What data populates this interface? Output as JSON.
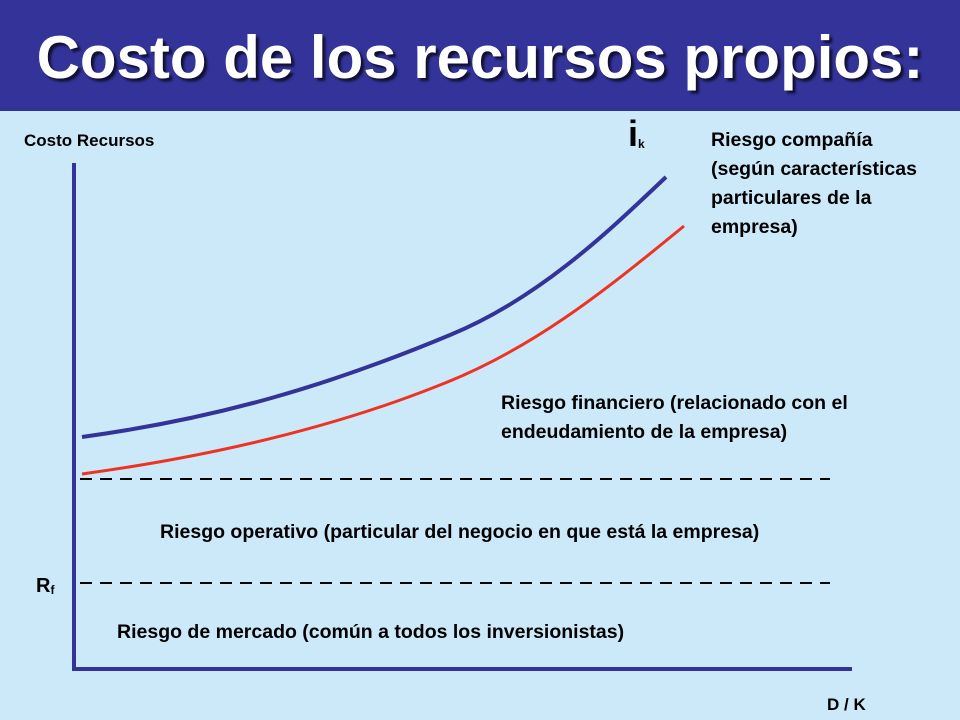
{
  "title": "Costo de los recursos propios:",
  "y_axis_label": "Costo Recursos",
  "x_axis_label": "D / K",
  "curve_label": {
    "base": "i",
    "sub": "k"
  },
  "rf_label": {
    "base": "R",
    "sub": "f"
  },
  "annotations": {
    "riesgo_compania": "Riesgo compañía (según características particulares de la empresa)",
    "riesgo_financiero": "Riesgo financiero (relacionado con el endeudamiento de la empresa)",
    "riesgo_operativo": "Riesgo operativo (particular del negocio en que está la empresa)",
    "riesgo_mercado": "Riesgo de mercado (común a todos los inversionistas)"
  },
  "colors": {
    "banner": "#333399",
    "background": "#cce9fa",
    "ik_curve": "#333399",
    "financial_curve": "#ee3322",
    "axes": "#333399"
  }
}
